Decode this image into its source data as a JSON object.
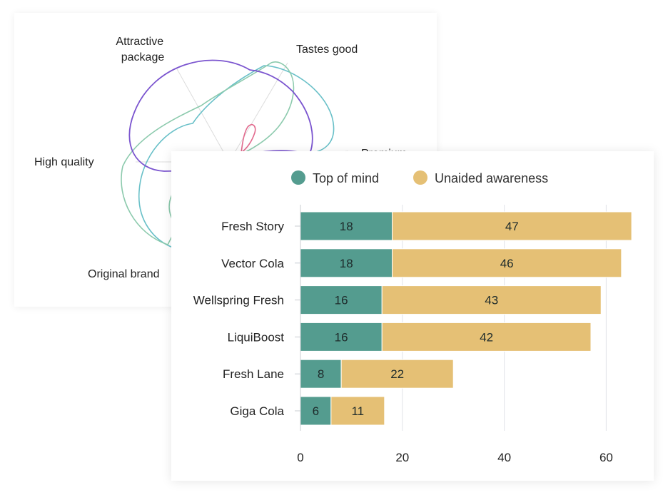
{
  "colors": {
    "top_of_mind": "#549c8f",
    "unaided": "#e5c075",
    "radar_purple": "#7b55cf",
    "radar_teal": "#69c0c8",
    "radar_green": "#8ccaad",
    "radar_pink": "#e2698d"
  },
  "radar_chart": {
    "type": "radar",
    "axes": [
      {
        "label": "Attractive package",
        "lines": [
          "Attractive",
          "package"
        ]
      },
      {
        "label": "Tastes good",
        "lines": [
          "Tastes good"
        ]
      },
      {
        "label": "Premium",
        "lines": [
          "Premium"
        ]
      },
      {
        "label": "Original brand",
        "lines": [
          "Original brand"
        ]
      },
      {
        "label": "High quality",
        "lines": [
          "High quality"
        ]
      }
    ]
  },
  "chart_data": {
    "type": "bar",
    "orientation": "horizontal",
    "stacked": true,
    "categories": [
      "Fresh Story",
      "Vector Cola",
      "Wellspring Fresh",
      "LiquiBoost",
      "Fresh Lane",
      "Giga Cola"
    ],
    "series": [
      {
        "name": "Top of mind",
        "values": [
          18,
          18,
          16,
          16,
          8,
          6
        ],
        "display_labels": [
          "18",
          "18",
          "16",
          "16",
          "8",
          "6"
        ]
      },
      {
        "name": "Unaided awareness",
        "values": [
          47,
          46,
          43,
          42,
          22,
          11
        ],
        "display_labels": [
          "47",
          "46",
          "43",
          "42",
          "22",
          "11"
        ]
      }
    ],
    "series_totals": [
      65,
      63,
      59,
      57,
      30,
      16.5
    ],
    "xlim": [
      0,
      65
    ],
    "xticks": [
      0,
      20,
      40,
      60
    ],
    "xtick_labels": [
      "0",
      "20",
      "40",
      "60"
    ],
    "grid": true,
    "legend_position": "top"
  }
}
